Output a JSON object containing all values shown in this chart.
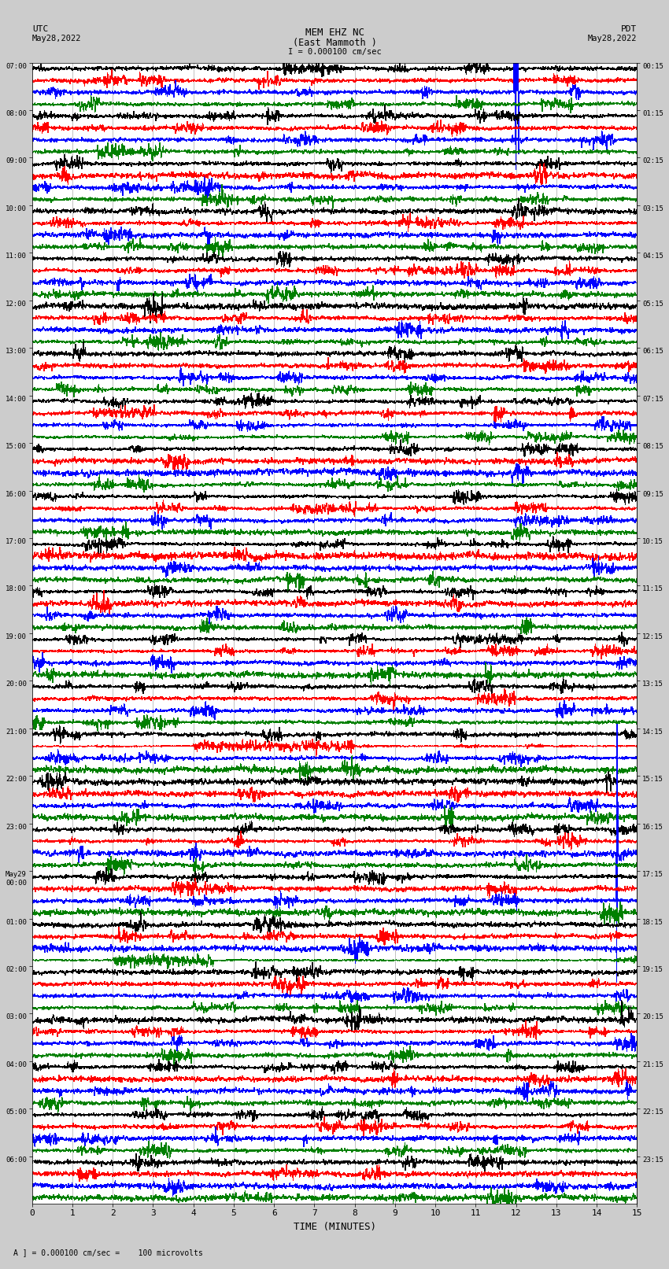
{
  "title_line1": "MEM EHZ NC",
  "title_line2": "(East Mammoth )",
  "title_line3": "I = 0.000100 cm/sec",
  "left_label_top": "UTC",
  "left_label_date": "May28,2022",
  "right_label_top": "PDT",
  "right_label_date": "May28,2022",
  "xlabel": "TIME (MINUTES)",
  "footer": "= 0.000100 cm/sec =    100 microvolts",
  "footer_prefix": "A ]",
  "utc_times": [
    "07:00",
    "08:00",
    "09:00",
    "10:00",
    "11:00",
    "12:00",
    "13:00",
    "14:00",
    "15:00",
    "16:00",
    "17:00",
    "18:00",
    "19:00",
    "20:00",
    "21:00",
    "22:00",
    "23:00",
    "May29\n00:00",
    "01:00",
    "02:00",
    "03:00",
    "04:00",
    "05:00",
    "06:00"
  ],
  "pdt_times": [
    "00:15",
    "01:15",
    "02:15",
    "03:15",
    "04:15",
    "05:15",
    "06:15",
    "07:15",
    "08:15",
    "09:15",
    "10:15",
    "11:15",
    "12:15",
    "13:15",
    "14:15",
    "15:15",
    "16:15",
    "17:15",
    "18:15",
    "19:15",
    "20:15",
    "21:15",
    "22:15",
    "23:15"
  ],
  "n_blocks": 24,
  "colors": [
    "black",
    "red",
    "blue",
    "green"
  ],
  "bg_color": "#cccccc",
  "trace_bg": "white",
  "xmin": 0,
  "xmax": 15,
  "xticks": [
    0,
    1,
    2,
    3,
    4,
    5,
    6,
    7,
    8,
    9,
    10,
    11,
    12,
    13,
    14,
    15
  ],
  "gridline_color": "#aaaaaa",
  "gridline_lw": 0.5,
  "trace_lw": 0.4,
  "base_noise": 0.04,
  "burst_noise": 0.18,
  "n_points": 1500
}
